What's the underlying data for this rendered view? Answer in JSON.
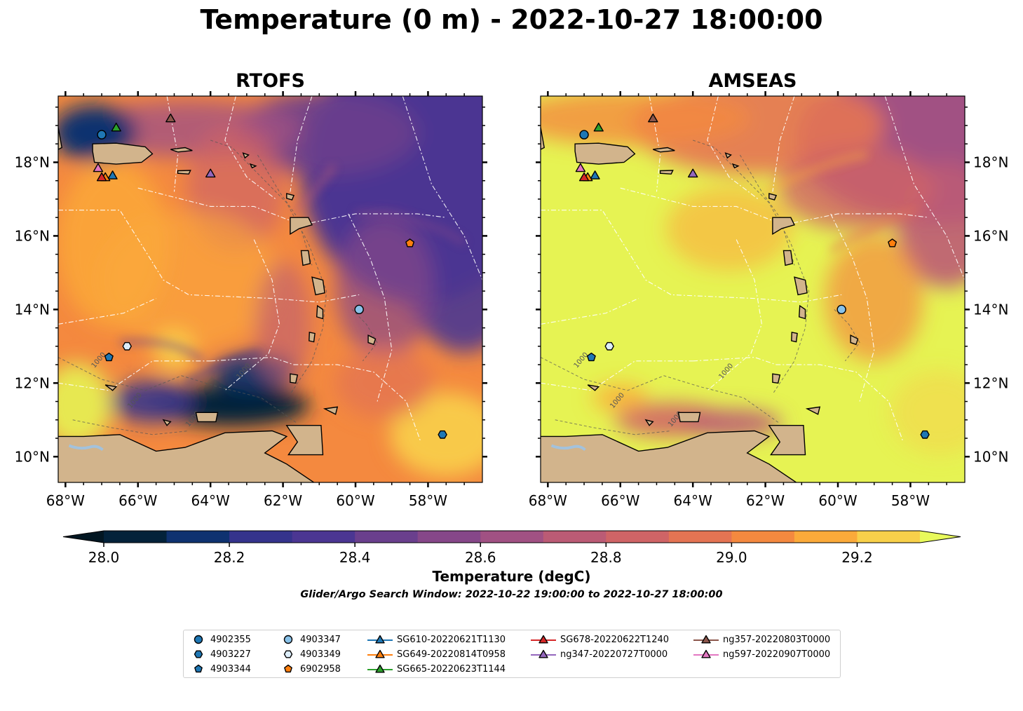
{
  "title": "Temperature (0 m) - 2022-10-27 18:00:00",
  "panels": [
    {
      "title": "RTOFS",
      "id": "rtofs"
    },
    {
      "title": "AMSEAS",
      "id": "amseas"
    }
  ],
  "axes": {
    "lon_range": [
      -68.2,
      -56.5
    ],
    "lat_range": [
      9.3,
      19.8
    ],
    "lon_ticks": [
      {
        "value": -68,
        "label": "68°W"
      },
      {
        "value": -66,
        "label": "66°W"
      },
      {
        "value": -64,
        "label": "64°W"
      },
      {
        "value": -62,
        "label": "62°W"
      },
      {
        "value": -60,
        "label": "60°W"
      },
      {
        "value": -58,
        "label": "58°W"
      }
    ],
    "lat_ticks": [
      {
        "value": 18,
        "label": "18°N"
      },
      {
        "value": 16,
        "label": "16°N"
      },
      {
        "value": 14,
        "label": "14°N"
      },
      {
        "value": 12,
        "label": "12°N"
      },
      {
        "value": 10,
        "label": "10°N"
      }
    ],
    "contour_label": "1000"
  },
  "colorbar": {
    "label": "Temperature (degC)",
    "range": [
      28.0,
      29.3
    ],
    "levels": [
      28.0,
      28.1,
      28.2,
      28.3,
      28.4,
      28.5,
      28.6,
      28.7,
      28.8,
      28.9,
      29.0,
      29.1,
      29.2,
      29.3
    ],
    "colors": [
      "#03223a",
      "#0f3270",
      "#35338c",
      "#4b3692",
      "#6a3f8d",
      "#864789",
      "#a15183",
      "#bb5b75",
      "#cf6466",
      "#e47453",
      "#f4893f",
      "#fbaa3a",
      "#f8d04a",
      "#e6f353"
    ],
    "under_color": "#021622",
    "over_color": "#e8fa5b",
    "ticks": [
      28.0,
      28.2,
      28.4,
      28.6,
      28.8,
      29.0,
      29.2
    ],
    "tick_labels": [
      "28.0",
      "28.2",
      "28.4",
      "28.6",
      "28.8",
      "29.0",
      "29.2"
    ]
  },
  "search_window": "Glider/Argo Search Window: 2022-10-22 19:00:00 to 2022-10-27 18:00:00",
  "colors": {
    "land": "#d2b48c",
    "lake": "#a3c2dc",
    "boundary": "#ffffff"
  },
  "legend": [
    {
      "label": "4902355",
      "marker": "circle",
      "color": "#1f77b4"
    },
    {
      "label": "4903227",
      "marker": "hexagon",
      "color": "#1f77b4"
    },
    {
      "label": "4903344",
      "marker": "pentagon",
      "color": "#1f77b4"
    },
    {
      "label": "4903347",
      "marker": "circle",
      "color": "#89c2e9"
    },
    {
      "label": "4903349",
      "marker": "hexagon",
      "color": "#ddeefb"
    },
    {
      "label": "6902958",
      "marker": "pentagon",
      "color": "#ff7f0e"
    },
    {
      "label": "SG610-20220621T1130",
      "marker": "triangle",
      "color": "#1f77b4"
    },
    {
      "label": "SG649-20220814T0958",
      "marker": "triangle",
      "color": "#ff7f0e"
    },
    {
      "label": "SG665-20220623T1144",
      "marker": "triangle",
      "color": "#2ca02c"
    },
    {
      "label": "SG678-20220622T1240",
      "marker": "triangle",
      "color": "#d62728"
    },
    {
      "label": "ng347-20220727T0000",
      "marker": "triangle",
      "color": "#9467bd"
    },
    {
      "label": "ng357-20220803T0000",
      "marker": "triangle",
      "color": "#8c564b"
    },
    {
      "label": "ng597-20220907T0000",
      "marker": "triangle",
      "color": "#e377c2"
    }
  ],
  "platforms": [
    {
      "label": "4902355",
      "lon": -67.0,
      "lat": 18.75
    },
    {
      "label": "4903227",
      "lon": -57.6,
      "lat": 10.6
    },
    {
      "label": "4903344",
      "lon": -66.8,
      "lat": 12.7
    },
    {
      "label": "4903347",
      "lon": -59.9,
      "lat": 14.0
    },
    {
      "label": "4903349",
      "lon": -66.3,
      "lat": 13.0
    },
    {
      "label": "6902958",
      "lon": -58.5,
      "lat": 15.8
    },
    {
      "label": "SG610-20220621T1130",
      "lon": -66.7,
      "lat": 17.65
    },
    {
      "label": "SG649-20220814T0958",
      "lon": -66.9,
      "lat": 17.6
    },
    {
      "label": "SG665-20220623T1144",
      "lon": -66.6,
      "lat": 18.95
    },
    {
      "label": "SG678-20220622T1240",
      "lon": -67.0,
      "lat": 17.6
    },
    {
      "label": "ng347-20220727T0000",
      "lon": -64.0,
      "lat": 17.7
    },
    {
      "label": "ng357-20220803T0000",
      "lon": -65.1,
      "lat": 19.2
    },
    {
      "label": "ng597-20220907T0000",
      "lon": -67.1,
      "lat": 17.85
    }
  ]
}
